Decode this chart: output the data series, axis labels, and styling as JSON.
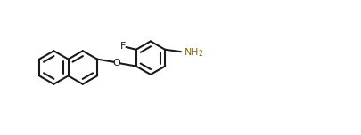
{
  "background": "#ffffff",
  "bond_color": "#1a1a1a",
  "nh2_color": "#8B6914",
  "bond_lw": 1.5,
  "figsize": [
    4.06,
    1.52
  ],
  "dpi": 100,
  "xlim": [
    0.0,
    10.0
  ],
  "ylim": [
    0.0,
    3.8
  ]
}
